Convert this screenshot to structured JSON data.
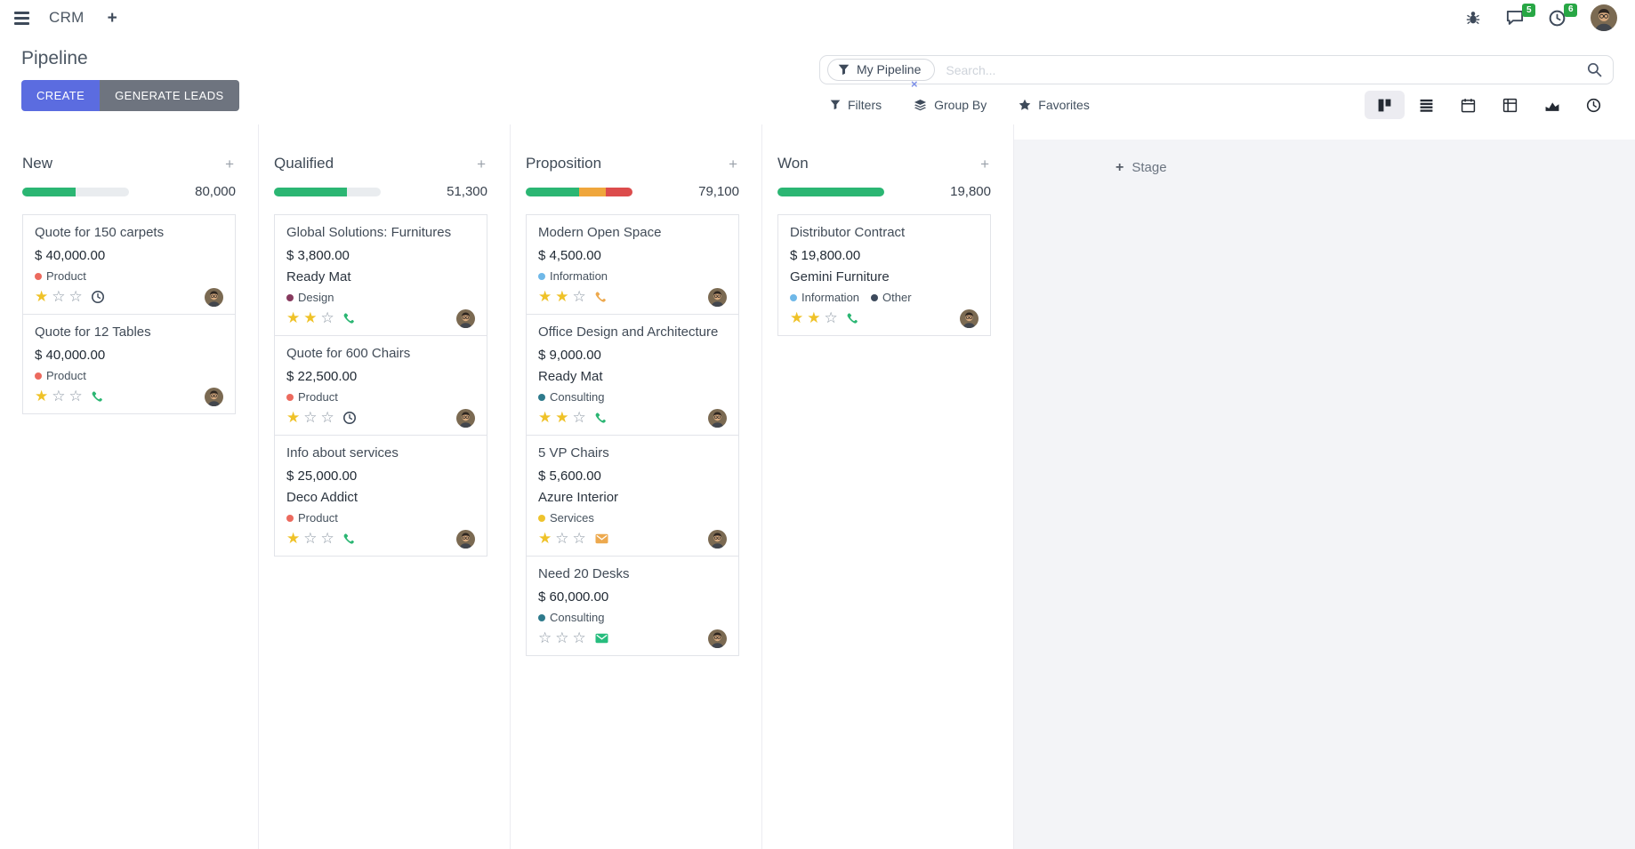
{
  "navbar": {
    "app_name": "CRM",
    "new_tab_label": "+",
    "messages_badge": "5",
    "activities_badge": "6"
  },
  "control_panel": {
    "title": "Pipeline",
    "create_label": "CREATE",
    "generate_leads_label": "GENERATE LEADS",
    "search": {
      "facet_label": "My Pipeline",
      "facet_remove_label": "×",
      "placeholder": "Search..."
    },
    "filters_label": "Filters",
    "group_by_label": "Group By",
    "favorites_label": "Favorites",
    "view_switcher": [
      {
        "name": "kanban",
        "active": true
      },
      {
        "name": "list",
        "active": false
      },
      {
        "name": "calendar",
        "active": false
      },
      {
        "name": "pivot",
        "active": false
      },
      {
        "name": "graph",
        "active": false
      },
      {
        "name": "activity",
        "active": false
      }
    ]
  },
  "colors": {
    "green": "#2bb673",
    "orange": "#efa63c",
    "red": "#dc4c4c",
    "track": "#e9ecef",
    "star_on": "#efc228",
    "star_off": "#8e99a5",
    "badge_green": "#28a745",
    "primary_button": "#5b6ce0",
    "secondary_button": "#6e747f"
  },
  "kanban": {
    "quick_add_label": "+",
    "add_stage_plus": "+",
    "add_stage_label": "Stage",
    "columns": [
      {
        "name": "New",
        "total": "80,000",
        "progress": [
          {
            "color": "green",
            "pct": 50
          }
        ],
        "cards": [
          {
            "title": "Quote for 150 carpets",
            "amount": "$ 40,000.00",
            "tags": [
              {
                "label": "Product",
                "color": "#ec6a5e"
              }
            ],
            "stars": 1,
            "activity": {
              "type": "clock",
              "color": "#3e4a5a"
            }
          },
          {
            "title": "Quote for 12 Tables",
            "amount": "$ 40,000.00",
            "tags": [
              {
                "label": "Product",
                "color": "#ec6a5e"
              }
            ],
            "stars": 1,
            "activity": {
              "type": "phone",
              "color": "#2bb673"
            }
          }
        ]
      },
      {
        "name": "Qualified",
        "total": "51,300",
        "progress": [
          {
            "color": "green",
            "pct": 68
          }
        ],
        "cards": [
          {
            "title": "Global Solutions: Furnitures",
            "amount": "$ 3,800.00",
            "company": "Ready Mat",
            "tags": [
              {
                "label": "Design",
                "color": "#873a5e"
              }
            ],
            "stars": 2,
            "activity": {
              "type": "phone",
              "color": "#2bb673"
            }
          },
          {
            "title": "Quote for 600 Chairs",
            "amount": "$ 22,500.00",
            "tags": [
              {
                "label": "Product",
                "color": "#ec6a5e"
              }
            ],
            "stars": 1,
            "activity": {
              "type": "clock",
              "color": "#3e4a5a"
            }
          },
          {
            "title": "Info about services",
            "amount": "$ 25,000.00",
            "company": "Deco Addict",
            "tags": [
              {
                "label": "Product",
                "color": "#ec6a5e"
              }
            ],
            "stars": 1,
            "activity": {
              "type": "phone",
              "color": "#2bb673"
            }
          }
        ]
      },
      {
        "name": "Proposition",
        "total": "79,100",
        "progress": [
          {
            "color": "green",
            "pct": 50
          },
          {
            "color": "orange",
            "pct": 25
          },
          {
            "color": "red",
            "pct": 25
          }
        ],
        "cards": [
          {
            "title": "Modern Open Space",
            "amount": "$ 4,500.00",
            "tags": [
              {
                "label": "Information",
                "color": "#6fb8e8"
              }
            ],
            "stars": 2,
            "activity": {
              "type": "phone",
              "color": "#eda94e"
            }
          },
          {
            "title": "Office Design and Architecture",
            "amount": "$ 9,000.00",
            "company": "Ready Mat",
            "tags": [
              {
                "label": "Consulting",
                "color": "#2e7a8c"
              }
            ],
            "stars": 2,
            "activity": {
              "type": "phone",
              "color": "#2bb673"
            }
          },
          {
            "title": "5 VP Chairs",
            "amount": "$ 5,600.00",
            "company": "Azure Interior",
            "tags": [
              {
                "label": "Services",
                "color": "#eec32d"
              }
            ],
            "stars": 1,
            "activity": {
              "type": "envelope",
              "color": "#eda94e"
            }
          },
          {
            "title": "Need 20 Desks",
            "amount": "$ 60,000.00",
            "tags": [
              {
                "label": "Consulting",
                "color": "#2e7a8c"
              }
            ],
            "stars": 0,
            "activity": {
              "type": "envelope",
              "color": "#27bd7e"
            }
          }
        ]
      },
      {
        "name": "Won",
        "total": "19,800",
        "progress": [
          {
            "color": "green",
            "pct": 100
          }
        ],
        "cards": [
          {
            "title": "Distributor Contract",
            "amount": "$ 19,800.00",
            "company": "Gemini Furniture",
            "tags": [
              {
                "label": "Information",
                "color": "#6fb8e8"
              },
              {
                "label": "Other",
                "color": "#3d4a5c"
              }
            ],
            "stars": 2,
            "activity": {
              "type": "phone",
              "color": "#2bb673"
            }
          }
        ]
      }
    ]
  }
}
